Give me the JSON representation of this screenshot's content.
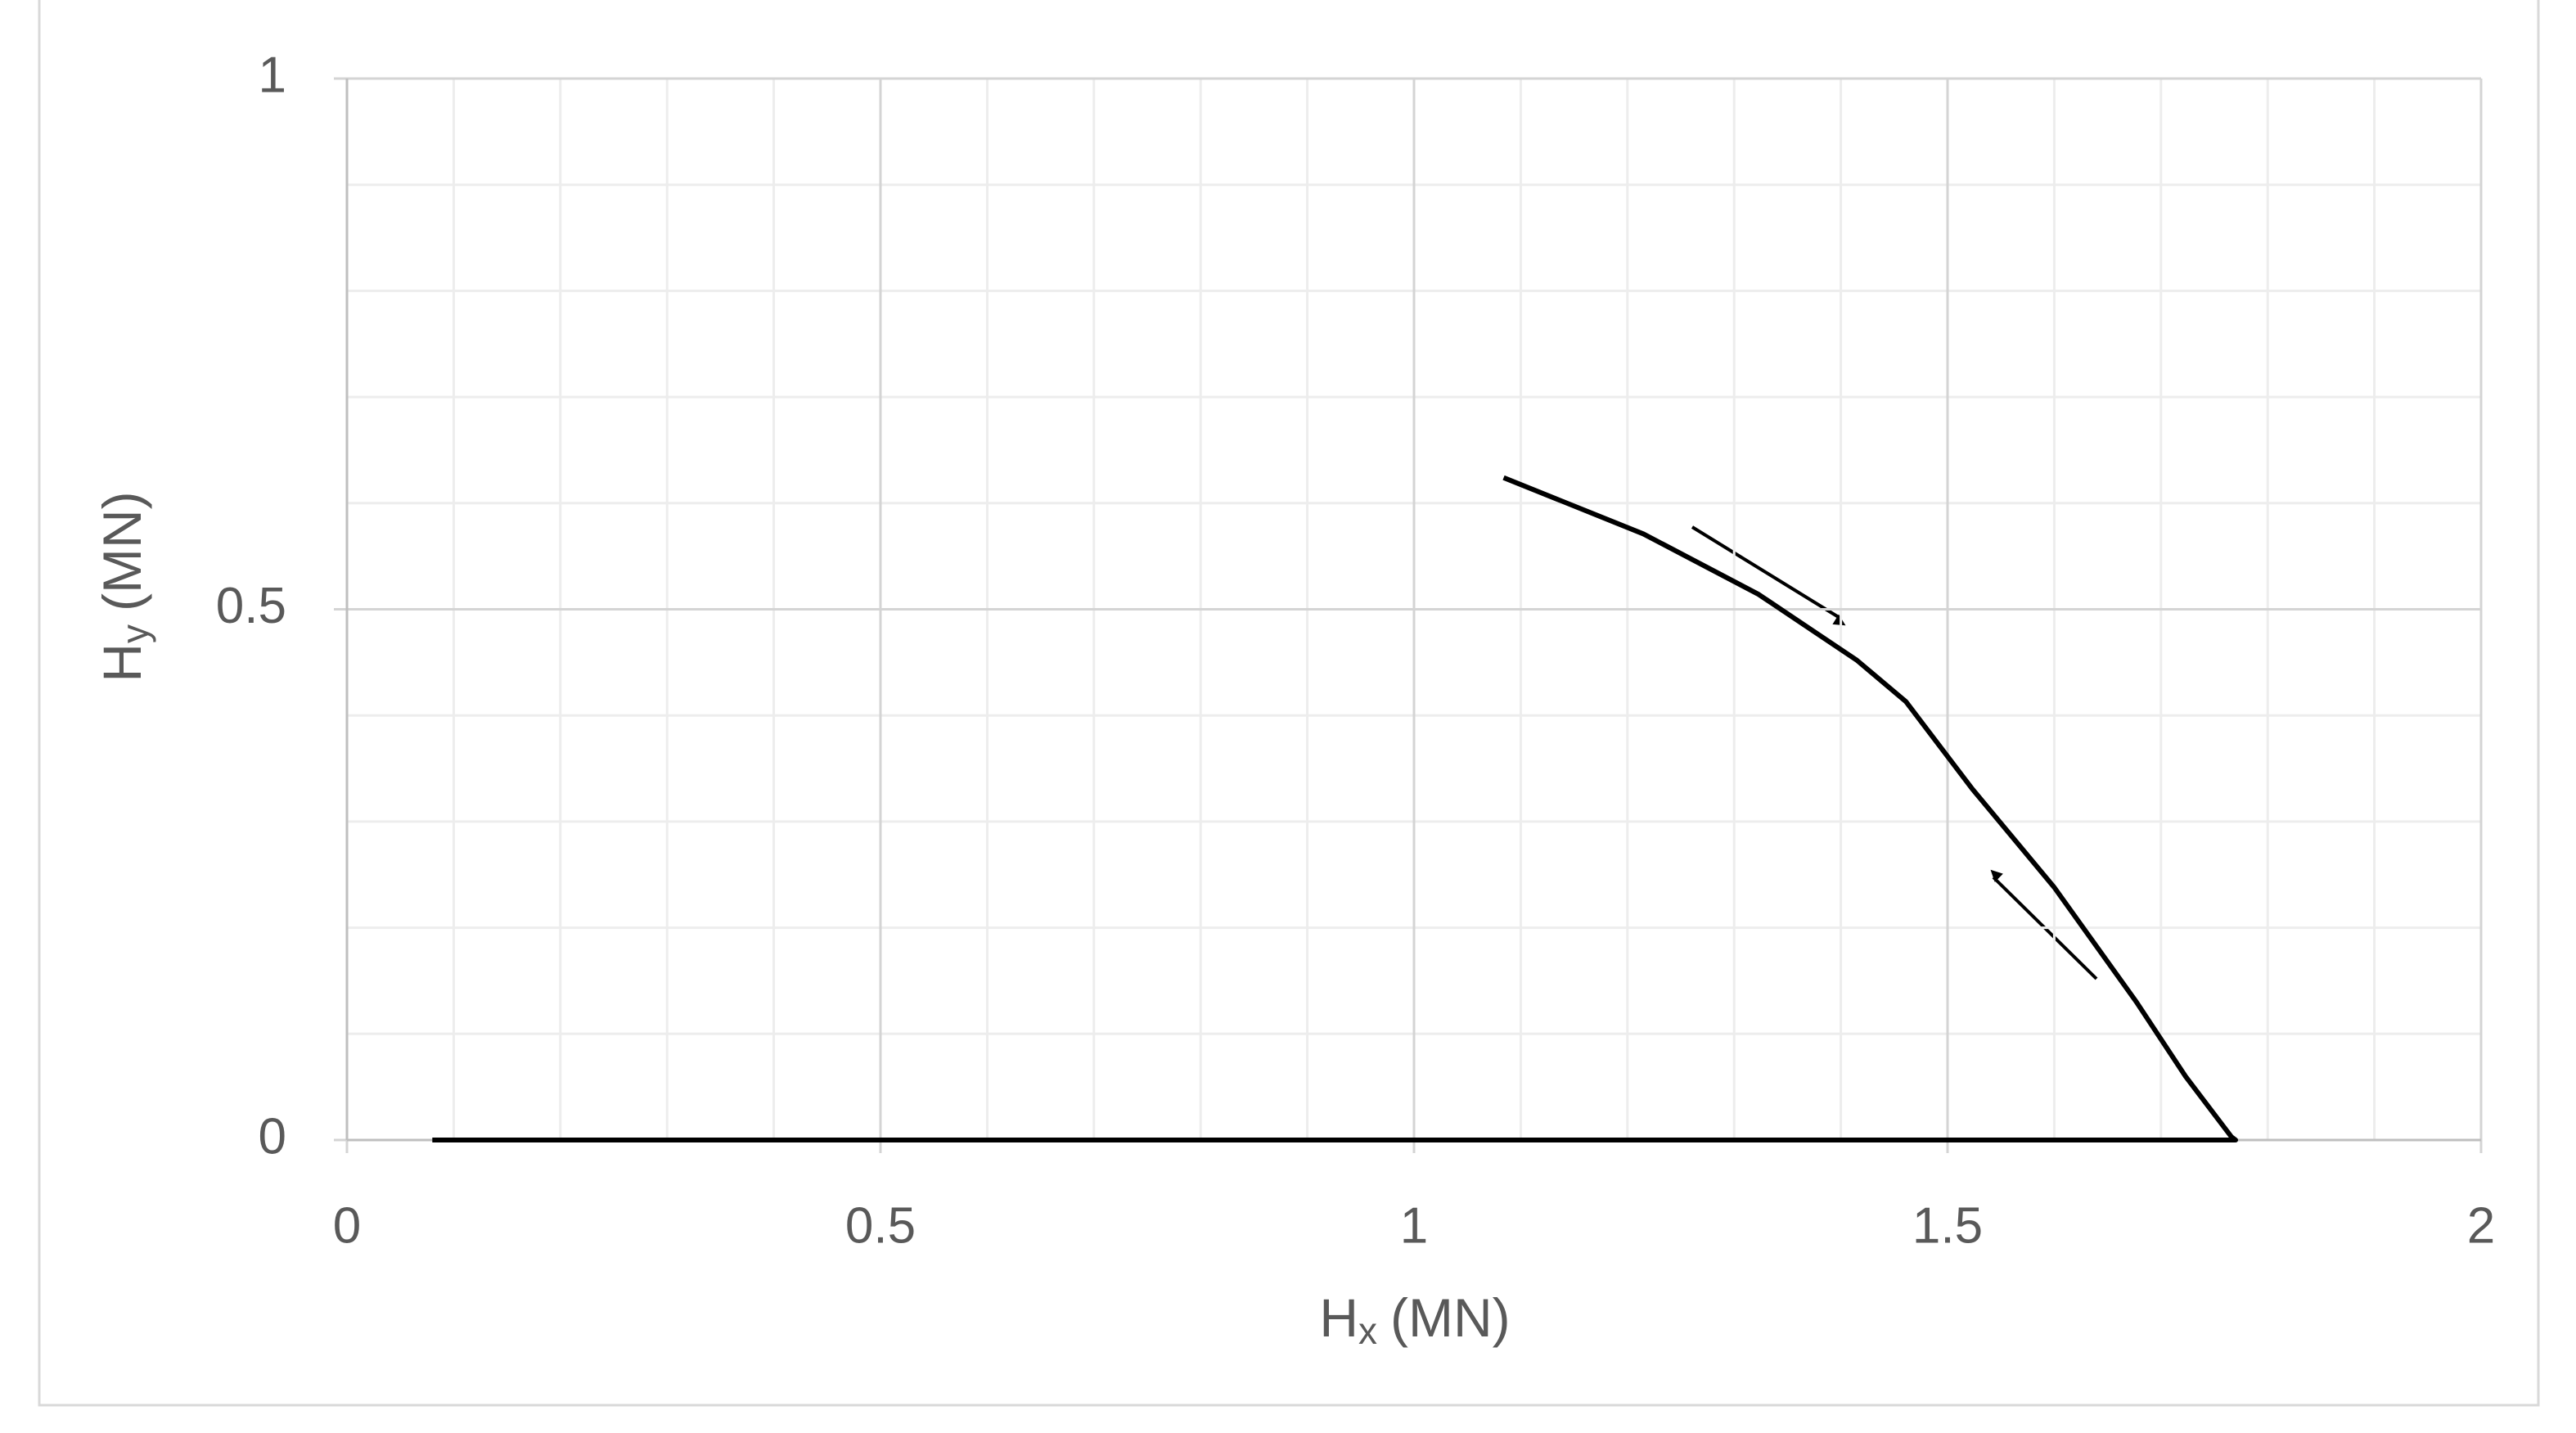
{
  "chart_data": {
    "type": "line",
    "xlabel": [
      "H",
      "x",
      "(MN)"
    ],
    "ylabel": [
      "H",
      "y",
      "(MN)"
    ],
    "xlim": [
      0,
      2
    ],
    "xticks": [
      0,
      0.5,
      1,
      1.5,
      2
    ],
    "ylim": [
      0,
      1
    ],
    "yticks": [
      0,
      0.5,
      1
    ],
    "xminor_ticks": [
      0.1,
      0.2,
      0.3,
      0.4,
      0.6,
      0.7,
      0.8,
      0.9,
      1.1,
      1.2,
      1.3,
      1.4,
      1.6,
      1.7,
      1.8,
      1.9
    ],
    "yminor_ticks": [
      0.1,
      0.2,
      0.3,
      0.4,
      0.6,
      0.7,
      0.8,
      0.9
    ],
    "grid": true,
    "series": [
      {
        "color": "#000000",
        "x": [
          0.08,
          1.77,
          1.766,
          1.723,
          1.677,
          1.6,
          1.523,
          1.461,
          1.415,
          1.323,
          1.215,
          1.084
        ],
        "values": [
          0,
          0,
          0.003,
          0.06,
          0.13,
          0.238,
          0.331,
          0.413,
          0.452,
          0.514,
          0.571,
          0.624
        ]
      }
    ]
  }
}
